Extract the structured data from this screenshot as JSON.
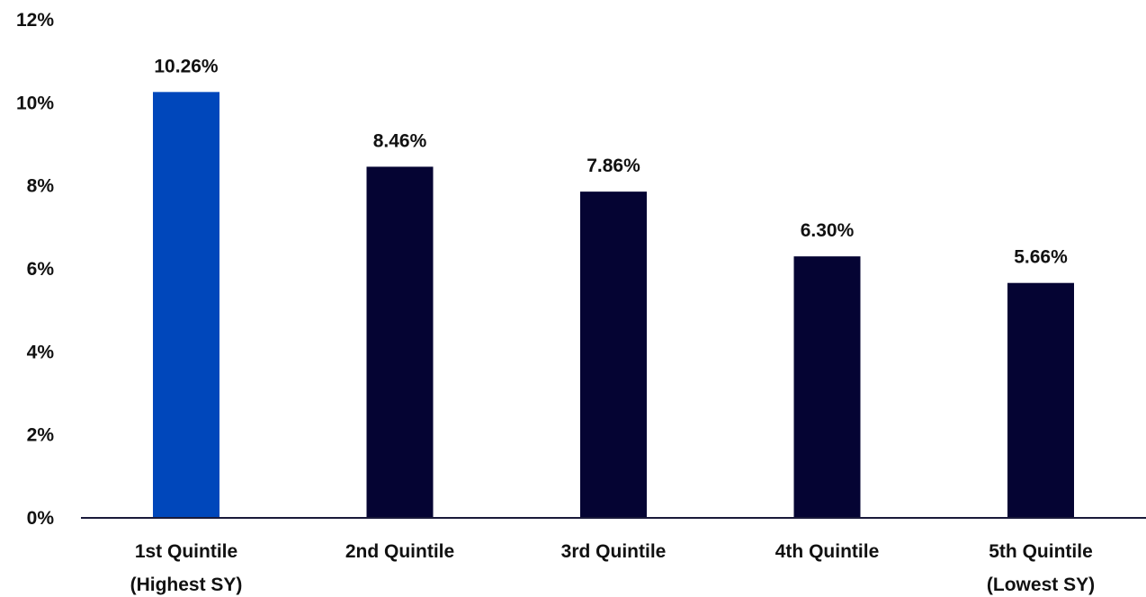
{
  "chart_data": {
    "type": "bar",
    "categories": [
      [
        "1st Quintile",
        "(Highest SY)"
      ],
      [
        "2nd Quintile"
      ],
      [
        "3rd Quintile"
      ],
      [
        "4th Quintile"
      ],
      [
        "5th Quintile",
        "(Lowest SY)"
      ]
    ],
    "values": [
      10.26,
      8.46,
      7.86,
      6.3,
      5.66
    ],
    "data_labels": [
      "10.26%",
      "8.46%",
      "7.86%",
      "6.30%",
      "5.66%"
    ],
    "ylim": [
      0,
      12
    ],
    "yticks": [
      0,
      2,
      4,
      6,
      8,
      10,
      12
    ],
    "ytick_labels": [
      "0%",
      "2%",
      "4%",
      "6%",
      "8%",
      "10%",
      "12%"
    ],
    "title": "",
    "xlabel": "",
    "ylabel": "",
    "grid": false,
    "legend": "none",
    "colors": {
      "highlight": "#0047BB",
      "default": "#050433",
      "axis": "#1a1a3a"
    },
    "highlight_index": 0
  }
}
